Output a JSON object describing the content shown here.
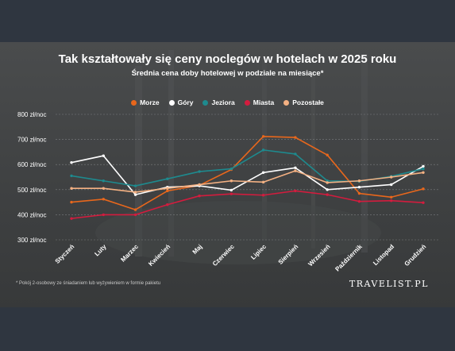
{
  "header": {
    "title": "Tak kształtowały się ceny noclegów w hotelach w 2025 roku",
    "subtitle": "Średnia cena doby hotelowej w podziale na miesiące*"
  },
  "footer": {
    "footnote": "* Pokój 2-osobowy ze śniadaniem lub wyżywieniem w formie pakietu",
    "brand": "TRAVELIST.PL"
  },
  "chart_data": {
    "type": "line",
    "title": "Tak kształtowały się ceny noclegów w hotelach w 2025 roku",
    "subtitle": "Średnia cena doby hotelowej w podziale na miesiące*",
    "categories": [
      "Styczeń",
      "Luty",
      "Marzec",
      "Kwiecień",
      "Maj",
      "Czerwiec",
      "Lipiec",
      "Sierpień",
      "Wrzesień",
      "Październik",
      "Listopad",
      "Grudzień"
    ],
    "y_ticks": [
      "300 zł/noc",
      "400 zł/noc",
      "500 zł/noc",
      "600 zł/noc",
      "700 zł/noc",
      "800 zł/noc"
    ],
    "ylim": [
      300,
      800
    ],
    "grid": true,
    "legend_position": "top-center",
    "series": [
      {
        "name": "Morze",
        "color": "#e8671c",
        "values": [
          450,
          462,
          420,
          495,
          517,
          580,
          712,
          708,
          638,
          485,
          470,
          503
        ]
      },
      {
        "name": "Góry",
        "color": "#ffffff",
        "values": [
          608,
          635,
          480,
          510,
          515,
          498,
          568,
          587,
          500,
          510,
          520,
          593
        ]
      },
      {
        "name": "Jeziora",
        "color": "#1e8a8e",
        "values": [
          555,
          535,
          515,
          543,
          572,
          583,
          658,
          642,
          535,
          533,
          553,
          583
        ]
      },
      {
        "name": "Miasta",
        "color": "#d31c3e",
        "values": [
          385,
          400,
          400,
          440,
          475,
          483,
          478,
          495,
          480,
          453,
          456,
          448
        ]
      },
      {
        "name": "Pozostałe",
        "color": "#f4b183",
        "values": [
          505,
          505,
          490,
          505,
          520,
          535,
          530,
          575,
          528,
          535,
          550,
          568
        ]
      }
    ]
  }
}
